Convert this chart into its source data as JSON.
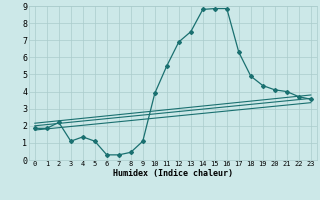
{
  "xlabel": "Humidex (Indice chaleur)",
  "xlim": [
    -0.5,
    23.5
  ],
  "ylim": [
    0,
    9
  ],
  "xticks": [
    0,
    1,
    2,
    3,
    4,
    5,
    6,
    7,
    8,
    9,
    10,
    11,
    12,
    13,
    14,
    15,
    16,
    17,
    18,
    19,
    20,
    21,
    22,
    23
  ],
  "yticks": [
    0,
    1,
    2,
    3,
    4,
    5,
    6,
    7,
    8,
    9
  ],
  "bg_color": "#cce8e8",
  "grid_color": "#aacccc",
  "line_color": "#1a7070",
  "line1_x": [
    0,
    1,
    2,
    3,
    4,
    5,
    6,
    7,
    8,
    9,
    10,
    11,
    12,
    13,
    14,
    15,
    16,
    17,
    18,
    19,
    20,
    21,
    22,
    23
  ],
  "line1_y": [
    1.85,
    1.85,
    2.2,
    1.1,
    1.35,
    1.1,
    0.3,
    0.3,
    0.45,
    1.1,
    3.9,
    5.5,
    6.9,
    7.5,
    8.8,
    8.85,
    8.85,
    6.3,
    4.9,
    4.35,
    4.1,
    4.0,
    3.7,
    3.55
  ],
  "line2_x": [
    0,
    23
  ],
  "line2_y": [
    2.0,
    3.6
  ],
  "line3_x": [
    0,
    23
  ],
  "line3_y": [
    2.15,
    3.8
  ],
  "line4_x": [
    0,
    23
  ],
  "line4_y": [
    1.75,
    3.35
  ]
}
